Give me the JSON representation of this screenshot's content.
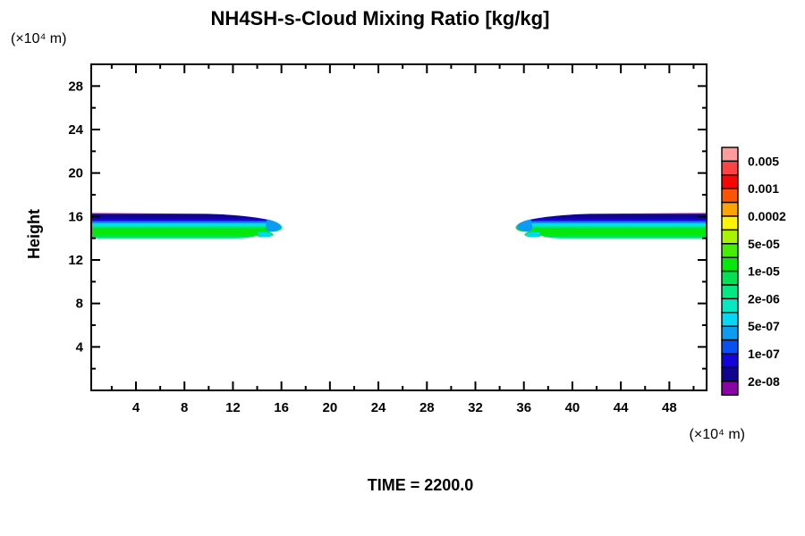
{
  "title": "NH4SH-s-Cloud Mixing Ratio [kg/kg]",
  "time_label": "TIME = 2200.0",
  "axes": {
    "y_name": "Height",
    "y_units": "(×10⁴ m)",
    "x_units": "(×10⁴ m)",
    "x_major_ticks": [
      4,
      8,
      12,
      16,
      20,
      24,
      28,
      32,
      36,
      40,
      44,
      48
    ],
    "x_minor_ticks": [
      2,
      6,
      10,
      14,
      18,
      22,
      26,
      30,
      34,
      38,
      42,
      46,
      50
    ],
    "y_major_ticks": [
      4,
      8,
      12,
      16,
      20,
      24,
      28
    ],
    "y_minor_ticks": [
      2,
      6,
      10,
      14,
      18,
      22,
      26
    ]
  },
  "colorbar": {
    "labels": [
      "0.005",
      "0.001",
      "0.0002",
      "5e-05",
      "1e-05",
      "2e-06",
      "5e-07",
      "1e-07",
      "2e-08"
    ],
    "colors": [
      "#fc9c9c",
      "#fc4444",
      "#fc0404",
      "#fc5404",
      "#fca404",
      "#fcf404",
      "#a8f404",
      "#48ec04",
      "#04e80c",
      "#04e054",
      "#04e884",
      "#04e8c4",
      "#04d8f4",
      "#0c9cf4",
      "#0850f0",
      "#1404dc",
      "#100490",
      "#8804a4"
    ]
  },
  "chart_data": {
    "type": "heatmap",
    "title": "NH4SH-s-Cloud Mixing Ratio [kg/kg]",
    "xlabel": "(×10⁴ m)",
    "ylabel": "Height",
    "ylabel_units": "(×10⁴ m)",
    "xlim": [
      0.3,
      51.1
    ],
    "ylim": [
      0,
      30
    ],
    "value_levels_kg_per_kg": [
      "0.005",
      "0.001",
      "0.0002",
      "5e-05",
      "1e-05",
      "2e-06",
      "5e-07",
      "1e-07",
      "2e-08"
    ],
    "time": "TIME = 2200.0",
    "features": [
      {
        "name": "left-cloud-band",
        "x_range": [
          0.3,
          15.8
        ],
        "height_range": [
          13.9,
          16.4
        ],
        "structure": "mixing ratio increases downward from cloud top: 2e-08 (purple) at top edge through blues/cyans to ~1e-05 (green) body; rounded blue tip with small hook on underside at x≈15"
      },
      {
        "name": "right-cloud-band",
        "x_range": [
          35.4,
          51.1
        ],
        "height_range": [
          13.9,
          16.4
        ],
        "structure": "mirror image of left band; blue rounded tip with small hook on underside at x≈36"
      }
    ],
    "legend_position": "right",
    "grid": false
  }
}
